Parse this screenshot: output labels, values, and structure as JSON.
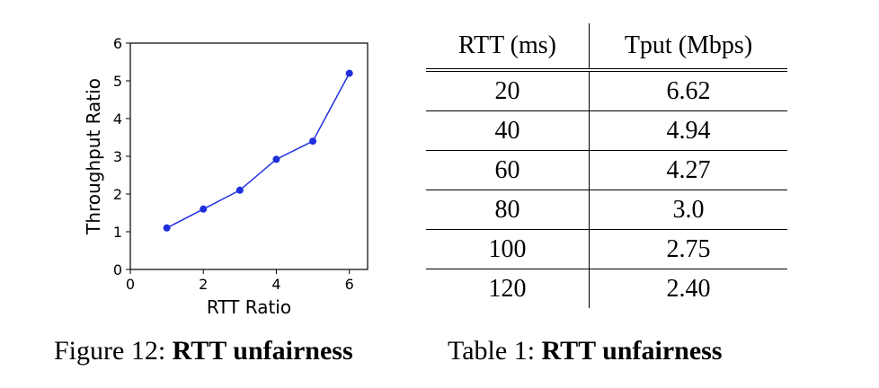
{
  "figure": {
    "chart_data": {
      "type": "line",
      "x": [
        1,
        2,
        3,
        4,
        5,
        6
      ],
      "series": [
        {
          "values": [
            1.1,
            1.6,
            2.1,
            2.92,
            3.4,
            5.2
          ]
        }
      ],
      "xlabel": "RTT Ratio",
      "ylabel": "Throughput Ratio",
      "xlim": [
        0,
        6.5
      ],
      "ylim": [
        0,
        6
      ],
      "xticks": [
        0,
        2,
        4,
        6
      ],
      "yticks": [
        0,
        1,
        2,
        3,
        4,
        5,
        6
      ],
      "line_color": "#1f2fdc",
      "grid": false
    },
    "caption_prefix": "Figure 12: ",
    "caption_bold": "RTT unfairness"
  },
  "table": {
    "headers": [
      "RTT (ms)",
      "Tput (Mbps)"
    ],
    "rows": [
      [
        "20",
        "6.62"
      ],
      [
        "40",
        "4.94"
      ],
      [
        "60",
        "4.27"
      ],
      [
        "80",
        "3.0"
      ],
      [
        "100",
        "2.75"
      ],
      [
        "120",
        "2.40"
      ]
    ],
    "caption_prefix": "Table 1: ",
    "caption_bold": "RTT unfairness"
  }
}
